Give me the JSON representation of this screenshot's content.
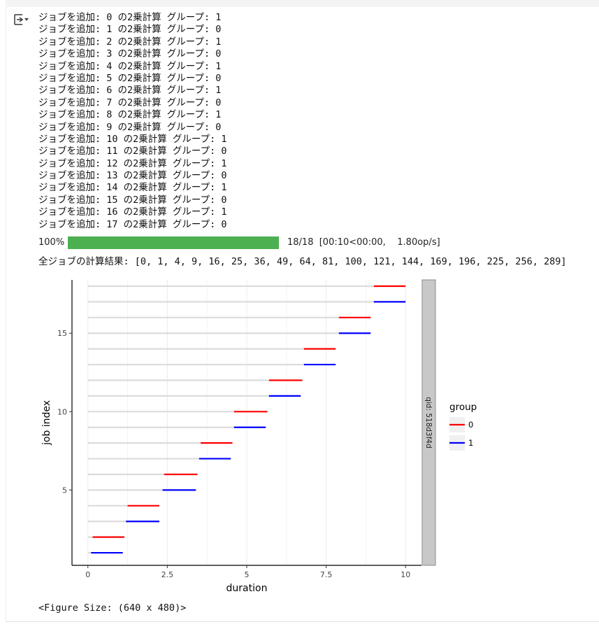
{
  "cell": {
    "output_icon": "output-toggle-icon",
    "log_lines": [
      "ジョブを追加: 0 の2乗計算 グループ: 1",
      "ジョブを追加: 1 の2乗計算 グループ: 0",
      "ジョブを追加: 2 の2乗計算 グループ: 1",
      "ジョブを追加: 3 の2乗計算 グループ: 0",
      "ジョブを追加: 4 の2乗計算 グループ: 1",
      "ジョブを追加: 5 の2乗計算 グループ: 0",
      "ジョブを追加: 6 の2乗計算 グループ: 1",
      "ジョブを追加: 7 の2乗計算 グループ: 0",
      "ジョブを追加: 8 の2乗計算 グループ: 1",
      "ジョブを追加: 9 の2乗計算 グループ: 0",
      "ジョブを追加: 10 の2乗計算 グループ: 1",
      "ジョブを追加: 11 の2乗計算 グループ: 0",
      "ジョブを追加: 12 の2乗計算 グループ: 1",
      "ジョブを追加: 13 の2乗計算 グループ: 0",
      "ジョブを追加: 14 の2乗計算 グループ: 1",
      "ジョブを追加: 15 の2乗計算 グループ: 0",
      "ジョブを追加: 16 の2乗計算 グループ: 1",
      "ジョブを追加: 17 の2乗計算 グループ: 0"
    ],
    "progress": {
      "percent_label": "100%",
      "fraction": 1.0,
      "stats": "18/18  [00:10<00:00,    1.80op/s]",
      "bar_color": "#4caf50"
    },
    "result_line": "全ジョブの計算結果: [0, 1, 4, 9, 16, 25, 36, 49, 64, 81, 100, 121, 144, 169, 196, 225, 256, 289]",
    "figure_size": "<Figure Size: (640 x 480)>"
  },
  "chart_data": {
    "type": "gantt",
    "xlabel": "duration",
    "ylabel": "job index",
    "xlim": [
      -0.5,
      10.5
    ],
    "ylim": [
      0.2,
      18.4
    ],
    "x_ticks": [
      0,
      2.5,
      5,
      7.5,
      10
    ],
    "x_tick_labels": [
      "0",
      "2.5",
      "5",
      "7.5",
      "10"
    ],
    "y_ticks": [
      5,
      10,
      15
    ],
    "y_tick_labels": [
      "5",
      "10",
      "15"
    ],
    "facet_label": "qid: 518d3f4d",
    "legend": {
      "title": "group",
      "entries": [
        {
          "label": "0",
          "color": "#ff0000"
        },
        {
          "label": "1",
          "color": "#0000ff"
        }
      ],
      "position": "right"
    },
    "series_colors": {
      "0": "#ff0000",
      "1": "#0000ff"
    },
    "wait_color": "#dcdcdc",
    "jobs": [
      {
        "index": 1,
        "group": "1",
        "start": 0.1,
        "end": 1.1
      },
      {
        "index": 2,
        "group": "0",
        "start": 0.15,
        "end": 1.15
      },
      {
        "index": 3,
        "group": "1",
        "start": 1.2,
        "end": 2.25
      },
      {
        "index": 4,
        "group": "0",
        "start": 1.25,
        "end": 2.25
      },
      {
        "index": 5,
        "group": "1",
        "start": 2.35,
        "end": 3.4
      },
      {
        "index": 6,
        "group": "0",
        "start": 2.4,
        "end": 3.45
      },
      {
        "index": 7,
        "group": "1",
        "start": 3.5,
        "end": 4.5
      },
      {
        "index": 8,
        "group": "0",
        "start": 3.55,
        "end": 4.55
      },
      {
        "index": 9,
        "group": "1",
        "start": 4.6,
        "end": 5.6
      },
      {
        "index": 10,
        "group": "0",
        "start": 4.6,
        "end": 5.65
      },
      {
        "index": 11,
        "group": "1",
        "start": 5.7,
        "end": 6.7
      },
      {
        "index": 12,
        "group": "0",
        "start": 5.7,
        "end": 6.75
      },
      {
        "index": 13,
        "group": "1",
        "start": 6.8,
        "end": 7.8
      },
      {
        "index": 14,
        "group": "0",
        "start": 6.8,
        "end": 7.8
      },
      {
        "index": 15,
        "group": "1",
        "start": 7.9,
        "end": 8.9
      },
      {
        "index": 16,
        "group": "0",
        "start": 7.9,
        "end": 8.9
      },
      {
        "index": 17,
        "group": "1",
        "start": 9.0,
        "end": 10.0
      },
      {
        "index": 18,
        "group": "0",
        "start": 9.0,
        "end": 10.0
      }
    ]
  }
}
